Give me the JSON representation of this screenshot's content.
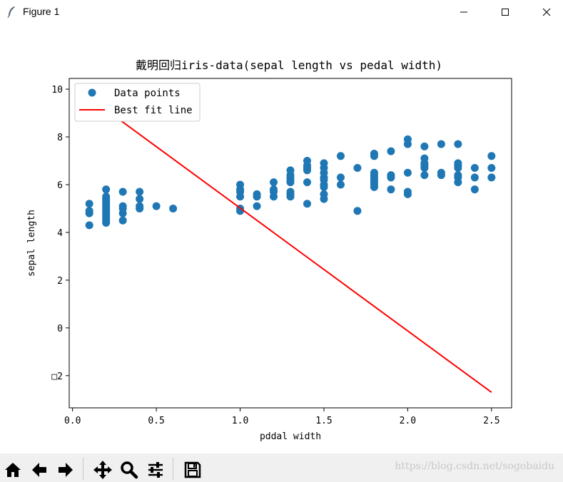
{
  "window": {
    "title": "Figure 1",
    "icon": "feather-icon",
    "controls": [
      "minimize-icon",
      "maximize-icon",
      "close-icon"
    ]
  },
  "toolbar": {
    "buttons": [
      "home-icon",
      "back-arrow-icon",
      "forward-arrow-icon",
      "pan-icon",
      "zoom-icon",
      "subplots-config-icon",
      "save-icon"
    ],
    "watermark": "https://blog.csdn.net/sogobaidu"
  },
  "chart_data": {
    "type": "scatter",
    "title": "戴明回归iris-data(sepal length vs pedal width)",
    "xlabel": "pddal width",
    "ylabel": "sepal length",
    "xlim": [
      -0.02,
      2.62
    ],
    "ylim": [
      -3.35,
      10.45
    ],
    "x_ticks": [
      0.0,
      0.5,
      1.0,
      1.5,
      2.0,
      2.5
    ],
    "x_tick_labels": [
      "0.0",
      "0.5",
      "1.0",
      "1.5",
      "2.0",
      "2.5"
    ],
    "y_ticks": [
      10,
      8,
      6,
      4,
      2,
      0,
      -2
    ],
    "y_tick_labels": [
      "10",
      "8",
      "6",
      "4",
      "2",
      "0",
      "□2"
    ],
    "grid": false,
    "legend": {
      "placement": "top-left",
      "entries": [
        "Data points",
        "Best fit line"
      ]
    },
    "colors": {
      "points": "#1f77b4",
      "line": "#ff0000"
    },
    "series": [
      {
        "name": "Data points",
        "type": "scatter",
        "points": [
          [
            0.1,
            4.3
          ],
          [
            0.1,
            4.8
          ],
          [
            0.1,
            4.9
          ],
          [
            0.1,
            5.2
          ],
          [
            0.2,
            4.4
          ],
          [
            0.2,
            4.5
          ],
          [
            0.2,
            4.6
          ],
          [
            0.2,
            4.7
          ],
          [
            0.2,
            4.8
          ],
          [
            0.2,
            4.9
          ],
          [
            0.2,
            5.0
          ],
          [
            0.2,
            5.1
          ],
          [
            0.2,
            5.2
          ],
          [
            0.2,
            5.3
          ],
          [
            0.2,
            5.4
          ],
          [
            0.2,
            5.5
          ],
          [
            0.2,
            5.8
          ],
          [
            0.3,
            4.5
          ],
          [
            0.3,
            4.8
          ],
          [
            0.3,
            5.0
          ],
          [
            0.3,
            5.1
          ],
          [
            0.3,
            5.7
          ],
          [
            0.4,
            5.0
          ],
          [
            0.4,
            5.1
          ],
          [
            0.4,
            5.4
          ],
          [
            0.4,
            5.7
          ],
          [
            0.5,
            5.1
          ],
          [
            0.6,
            5.0
          ],
          [
            1.0,
            4.9
          ],
          [
            1.0,
            5.0
          ],
          [
            1.0,
            5.5
          ],
          [
            1.0,
            5.7
          ],
          [
            1.0,
            5.8
          ],
          [
            1.0,
            6.0
          ],
          [
            1.1,
            5.1
          ],
          [
            1.1,
            5.5
          ],
          [
            1.1,
            5.6
          ],
          [
            1.2,
            5.5
          ],
          [
            1.2,
            5.7
          ],
          [
            1.2,
            5.8
          ],
          [
            1.2,
            6.1
          ],
          [
            1.3,
            5.5
          ],
          [
            1.3,
            5.6
          ],
          [
            1.3,
            5.7
          ],
          [
            1.3,
            6.1
          ],
          [
            1.3,
            6.2
          ],
          [
            1.3,
            6.3
          ],
          [
            1.3,
            6.4
          ],
          [
            1.3,
            6.6
          ],
          [
            1.4,
            5.2
          ],
          [
            1.4,
            6.1
          ],
          [
            1.4,
            6.6
          ],
          [
            1.4,
            6.7
          ],
          [
            1.4,
            6.8
          ],
          [
            1.4,
            7.0
          ],
          [
            1.5,
            5.4
          ],
          [
            1.5,
            5.6
          ],
          [
            1.5,
            5.9
          ],
          [
            1.5,
            6.0
          ],
          [
            1.5,
            6.2
          ],
          [
            1.5,
            6.3
          ],
          [
            1.5,
            6.5
          ],
          [
            1.5,
            6.7
          ],
          [
            1.5,
            6.9
          ],
          [
            1.6,
            6.0
          ],
          [
            1.6,
            6.3
          ],
          [
            1.6,
            7.2
          ],
          [
            1.7,
            4.9
          ],
          [
            1.7,
            6.7
          ],
          [
            1.8,
            5.9
          ],
          [
            1.8,
            6.0
          ],
          [
            1.8,
            6.1
          ],
          [
            1.8,
            6.2
          ],
          [
            1.8,
            6.3
          ],
          [
            1.8,
            6.4
          ],
          [
            1.8,
            6.5
          ],
          [
            1.8,
            7.2
          ],
          [
            1.8,
            7.3
          ],
          [
            1.9,
            5.8
          ],
          [
            1.9,
            6.3
          ],
          [
            1.9,
            6.4
          ],
          [
            1.9,
            7.4
          ],
          [
            2.0,
            5.6
          ],
          [
            2.0,
            5.7
          ],
          [
            2.0,
            6.5
          ],
          [
            2.0,
            7.7
          ],
          [
            2.0,
            7.9
          ],
          [
            2.1,
            6.4
          ],
          [
            2.1,
            6.7
          ],
          [
            2.1,
            6.8
          ],
          [
            2.1,
            6.9
          ],
          [
            2.1,
            7.1
          ],
          [
            2.1,
            7.6
          ],
          [
            2.2,
            6.4
          ],
          [
            2.2,
            6.5
          ],
          [
            2.2,
            7.7
          ],
          [
            2.3,
            6.1
          ],
          [
            2.3,
            6.3
          ],
          [
            2.3,
            6.4
          ],
          [
            2.3,
            6.7
          ],
          [
            2.3,
            6.8
          ],
          [
            2.3,
            6.9
          ],
          [
            2.3,
            7.7
          ],
          [
            2.4,
            5.8
          ],
          [
            2.4,
            6.3
          ],
          [
            2.4,
            6.7
          ],
          [
            2.5,
            6.3
          ],
          [
            2.5,
            6.7
          ],
          [
            2.5,
            7.2
          ]
        ]
      },
      {
        "name": "Best fit line",
        "type": "line",
        "points": [
          [
            0.1,
            9.65
          ],
          [
            2.5,
            -2.7
          ]
        ]
      }
    ]
  }
}
